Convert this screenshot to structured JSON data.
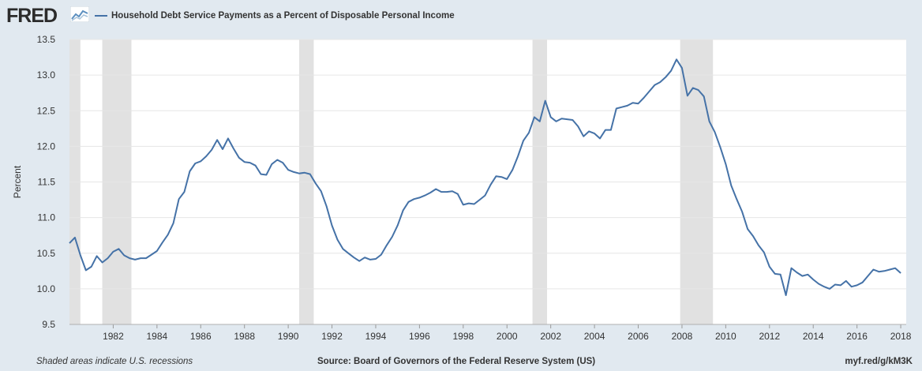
{
  "brand": "FRED",
  "icons": {
    "logo_graph": "mini-line-graph-icon"
  },
  "colors": {
    "background": "#e1e9f0",
    "plot_background": "#ffffff",
    "series_line": "#4572a7",
    "recession_band": "#e1e1e1",
    "gridline": "#e6e6e6",
    "text": "#333333"
  },
  "footer": {
    "recession_note": "Shaded areas indicate U.S. recessions",
    "source": "Source: Board of Governors of the Federal Reserve System (US)",
    "link": "myf.red/g/kM3K"
  },
  "chart_data": {
    "type": "line",
    "title": "",
    "xlabel": "",
    "ylabel": "Percent",
    "ylim": [
      9.5,
      13.5
    ],
    "xlim": [
      "1980-01-01",
      "2018-04-01"
    ],
    "yticks": [
      9.5,
      10.0,
      10.5,
      11.0,
      11.5,
      12.0,
      12.5,
      13.0,
      13.5
    ],
    "xticks": [
      "1982",
      "1984",
      "1986",
      "1988",
      "1990",
      "1992",
      "1994",
      "1996",
      "1998",
      "2000",
      "2002",
      "2004",
      "2006",
      "2008",
      "2010",
      "2012",
      "2014",
      "2016",
      "2018"
    ],
    "grid": true,
    "legend_placement": "top-left",
    "recessions": [
      [
        "1980-01-01",
        "1980-07-01"
      ],
      [
        "1981-07-01",
        "1982-11-01"
      ],
      [
        "1990-07-01",
        "1991-03-01"
      ],
      [
        "2001-03-01",
        "2001-11-01"
      ],
      [
        "2007-12-01",
        "2009-06-01"
      ]
    ],
    "series": [
      {
        "name": "Household Debt Service Payments as a Percent of Disposable Personal Income",
        "x": [
          "1980-01-01",
          "1980-04-01",
          "1980-07-01",
          "1980-10-01",
          "1981-01-01",
          "1981-04-01",
          "1981-07-01",
          "1981-10-01",
          "1982-01-01",
          "1982-04-01",
          "1982-07-01",
          "1982-10-01",
          "1983-01-01",
          "1983-04-01",
          "1983-07-01",
          "1983-10-01",
          "1984-01-01",
          "1984-04-01",
          "1984-07-01",
          "1984-10-01",
          "1985-01-01",
          "1985-04-01",
          "1985-07-01",
          "1985-10-01",
          "1986-01-01",
          "1986-04-01",
          "1986-07-01",
          "1986-10-01",
          "1987-01-01",
          "1987-04-01",
          "1987-07-01",
          "1987-10-01",
          "1988-01-01",
          "1988-04-01",
          "1988-07-01",
          "1988-10-01",
          "1989-01-01",
          "1989-04-01",
          "1989-07-01",
          "1989-10-01",
          "1990-01-01",
          "1990-04-01",
          "1990-07-01",
          "1990-10-01",
          "1991-01-01",
          "1991-04-01",
          "1991-07-01",
          "1991-10-01",
          "1992-01-01",
          "1992-04-01",
          "1992-07-01",
          "1992-10-01",
          "1993-01-01",
          "1993-04-01",
          "1993-07-01",
          "1993-10-01",
          "1994-01-01",
          "1994-04-01",
          "1994-07-01",
          "1994-10-01",
          "1995-01-01",
          "1995-04-01",
          "1995-07-01",
          "1995-10-01",
          "1996-01-01",
          "1996-04-01",
          "1996-07-01",
          "1996-10-01",
          "1997-01-01",
          "1997-04-01",
          "1997-07-01",
          "1997-10-01",
          "1998-01-01",
          "1998-04-01",
          "1998-07-01",
          "1998-10-01",
          "1999-01-01",
          "1999-04-01",
          "1999-07-01",
          "1999-10-01",
          "2000-01-01",
          "2000-04-01",
          "2000-07-01",
          "2000-10-01",
          "2001-01-01",
          "2001-04-01",
          "2001-07-01",
          "2001-10-01",
          "2002-01-01",
          "2002-04-01",
          "2002-07-01",
          "2002-10-01",
          "2003-01-01",
          "2003-04-01",
          "2003-07-01",
          "2003-10-01",
          "2004-01-01",
          "2004-04-01",
          "2004-07-01",
          "2004-10-01",
          "2005-01-01",
          "2005-04-01",
          "2005-07-01",
          "2005-10-01",
          "2006-01-01",
          "2006-04-01",
          "2006-07-01",
          "2006-10-01",
          "2007-01-01",
          "2007-04-01",
          "2007-07-01",
          "2007-10-01",
          "2008-01-01",
          "2008-04-01",
          "2008-07-01",
          "2008-10-01",
          "2009-01-01",
          "2009-04-01",
          "2009-07-01",
          "2009-10-01",
          "2010-01-01",
          "2010-04-01",
          "2010-07-01",
          "2010-10-01",
          "2011-01-01",
          "2011-04-01",
          "2011-07-01",
          "2011-10-01",
          "2012-01-01",
          "2012-04-01",
          "2012-07-01",
          "2012-10-01",
          "2013-01-01",
          "2013-04-01",
          "2013-07-01",
          "2013-10-01",
          "2014-01-01",
          "2014-04-01",
          "2014-07-01",
          "2014-10-01",
          "2015-01-01",
          "2015-04-01",
          "2015-07-01",
          "2015-10-01",
          "2016-01-01",
          "2016-04-01",
          "2016-07-01",
          "2016-10-01",
          "2017-01-01",
          "2017-04-01",
          "2017-07-01",
          "2017-10-01",
          "2018-01-01"
        ],
        "values": [
          10.64,
          10.72,
          10.47,
          10.26,
          10.31,
          10.46,
          10.37,
          10.43,
          10.52,
          10.56,
          10.47,
          10.43,
          10.41,
          10.43,
          10.43,
          10.48,
          10.53,
          10.65,
          10.76,
          10.92,
          11.26,
          11.36,
          11.65,
          11.76,
          11.79,
          11.86,
          11.95,
          12.09,
          11.96,
          12.11,
          11.97,
          11.84,
          11.78,
          11.77,
          11.73,
          11.61,
          11.6,
          11.75,
          11.81,
          11.77,
          11.67,
          11.64,
          11.62,
          11.63,
          11.61,
          11.48,
          11.37,
          11.16,
          10.89,
          10.69,
          10.56,
          10.5,
          10.44,
          10.39,
          10.44,
          10.41,
          10.42,
          10.48,
          10.61,
          10.73,
          10.89,
          11.1,
          11.22,
          11.26,
          11.28,
          11.31,
          11.35,
          11.4,
          11.36,
          11.36,
          11.37,
          11.33,
          11.18,
          11.2,
          11.19,
          11.25,
          11.31,
          11.46,
          11.58,
          11.57,
          11.54,
          11.67,
          11.86,
          12.08,
          12.19,
          12.41,
          12.35,
          12.64,
          12.41,
          12.35,
          12.39,
          12.38,
          12.37,
          12.28,
          12.14,
          12.21,
          12.18,
          12.11,
          12.23,
          12.23,
          12.53,
          12.55,
          12.57,
          12.61,
          12.6,
          12.68,
          12.77,
          12.86,
          12.9,
          12.97,
          13.06,
          13.22,
          13.1,
          12.71,
          12.82,
          12.79,
          12.7,
          12.35,
          12.2,
          11.99,
          11.75,
          11.45,
          11.26,
          11.08,
          10.84,
          10.74,
          10.61,
          10.51,
          10.31,
          10.21,
          10.2,
          9.91,
          10.29,
          10.23,
          10.18,
          10.2,
          10.13,
          10.07,
          10.03,
          10.0,
          10.06,
          10.05,
          10.11,
          10.03,
          10.05,
          10.09,
          10.18,
          10.27,
          10.24,
          10.25,
          10.27,
          10.29,
          10.22
        ]
      }
    ]
  }
}
